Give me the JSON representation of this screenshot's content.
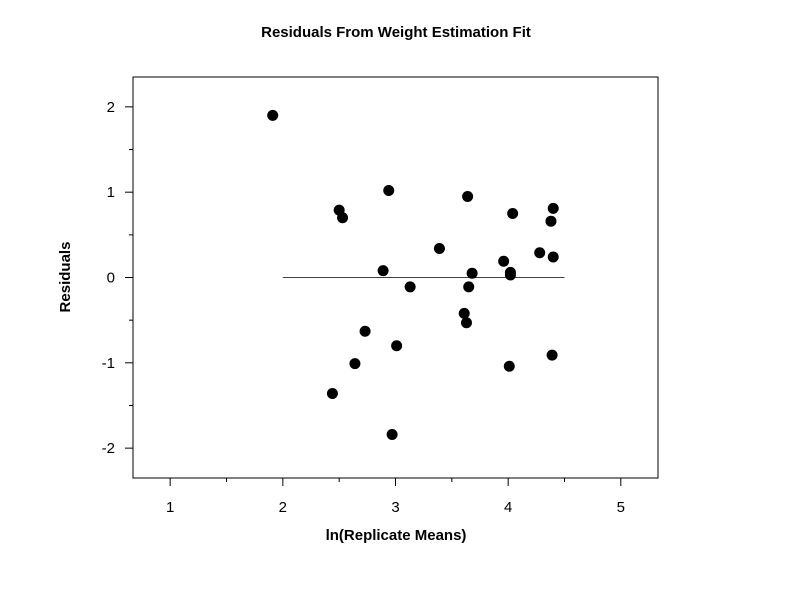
{
  "chart_data": {
    "type": "scatter",
    "title": "Residuals From Weight Estimation Fit",
    "xlabel": "ln(Replicate Means)",
    "ylabel": "Residuals",
    "xlim": [
      0.67,
      5.33
    ],
    "ylim": [
      -2.35,
      2.35
    ],
    "xticks": [
      1,
      2,
      3,
      4,
      5
    ],
    "xticks_minor": [
      1.5,
      2.5,
      3.5,
      4.5
    ],
    "yticks": [
      -2,
      -1,
      0,
      1,
      2
    ],
    "yticks_minor": [
      -1.5,
      -0.5,
      0.5,
      1.5
    ],
    "grid": false,
    "reference_line": {
      "y": 0,
      "x_from": 2.0,
      "x_to": 4.5
    },
    "series": [
      {
        "marker": "filled-circle",
        "color": "#000000",
        "points": [
          [
            1.91,
            1.9
          ],
          [
            2.44,
            -1.36
          ],
          [
            2.5,
            0.79
          ],
          [
            2.53,
            0.7
          ],
          [
            2.64,
            -1.01
          ],
          [
            2.73,
            -0.63
          ],
          [
            2.89,
            0.08
          ],
          [
            2.94,
            1.02
          ],
          [
            2.97,
            -1.84
          ],
          [
            3.01,
            -0.8
          ],
          [
            3.13,
            -0.11
          ],
          [
            3.39,
            0.34
          ],
          [
            3.61,
            -0.42
          ],
          [
            3.63,
            -0.53
          ],
          [
            3.64,
            0.95
          ],
          [
            3.65,
            -0.11
          ],
          [
            3.68,
            0.05
          ],
          [
            3.96,
            0.19
          ],
          [
            4.01,
            -1.04
          ],
          [
            4.02,
            0.03
          ],
          [
            4.02,
            0.06
          ],
          [
            4.04,
            0.75
          ],
          [
            4.28,
            0.29
          ],
          [
            4.38,
            0.66
          ],
          [
            4.39,
            -0.91
          ],
          [
            4.4,
            0.24
          ],
          [
            4.4,
            0.81
          ]
        ]
      }
    ]
  }
}
